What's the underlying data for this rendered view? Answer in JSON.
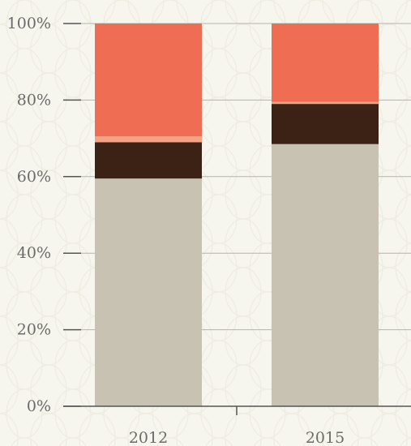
{
  "chart_data": {
    "type": "bar",
    "stacked": true,
    "categories": [
      "2012",
      "2015"
    ],
    "series": [
      {
        "color": "#c7c2b1",
        "values": [
          59.5,
          68.5
        ]
      },
      {
        "color": "#3b2214",
        "values": [
          9.5,
          10.5
        ]
      },
      {
        "color": "#f4a484",
        "values": [
          1.5,
          0.5
        ]
      },
      {
        "color": "#ef6e53",
        "values": [
          29.5,
          20.5
        ]
      }
    ],
    "ylim": [
      0,
      100
    ],
    "yticks": [
      0,
      20,
      40,
      60,
      80,
      100
    ],
    "ytick_labels": [
      "0%",
      "20%",
      "40%",
      "60%",
      "80%",
      "100%"
    ],
    "grid": true,
    "title": "",
    "xlabel": "",
    "ylabel": ""
  },
  "colors": {
    "background": "#f7f6ee",
    "gridline": "#b5b4aa",
    "axis": "#555555",
    "text": "#6b6b6b"
  }
}
